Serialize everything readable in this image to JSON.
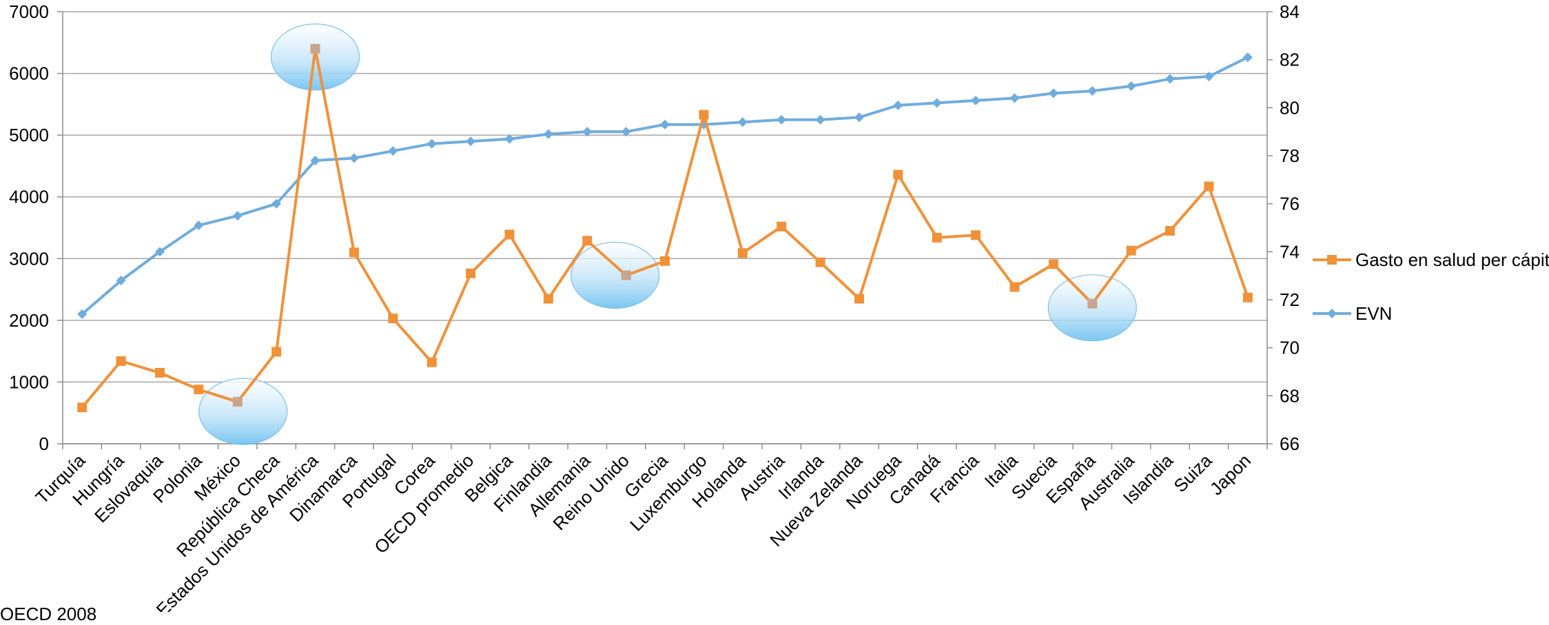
{
  "chart_data": {
    "type": "line",
    "categories": [
      "Turquía",
      "Hungría",
      "Eslovaquia",
      "Polonia",
      "México",
      "República Checa",
      "Estados Unidos de América",
      "Dinamarca",
      "Portugal",
      "Corea",
      "OECD promedio",
      "Belgica",
      "Finlandia",
      "Allemania",
      "Reino Unido",
      "Grecia",
      "Luxemburgo",
      "Holanda",
      "Austria",
      "Irlanda",
      "Nueva Zelanda",
      "Noruega",
      "Canadá",
      "Francia",
      "Italia",
      "Suecia",
      "España",
      "Australia",
      "Islandia",
      "Suiza",
      "Japon"
    ],
    "series": [
      {
        "name": "Gasto en salud per cápita",
        "axis": "left",
        "color": "#F0913A",
        "marker": "square",
        "values": [
          590,
          1340,
          1150,
          880,
          680,
          1490,
          6400,
          3100,
          2030,
          1320,
          2760,
          3390,
          2350,
          3290,
          2730,
          2960,
          5330,
          3090,
          3520,
          2940,
          2350,
          4360,
          3340,
          3380,
          2540,
          2910,
          2270,
          3130,
          3450,
          4170,
          2370
        ]
      },
      {
        "name": "EVN",
        "axis": "right",
        "color": "#6FACDE",
        "marker": "diamond",
        "values": [
          71.4,
          72.8,
          74.0,
          75.1,
          75.5,
          76.0,
          77.8,
          77.9,
          78.2,
          78.5,
          78.6,
          78.7,
          78.9,
          79.0,
          79.0,
          79.3,
          79.3,
          79.4,
          79.5,
          79.5,
          79.6,
          80.1,
          80.2,
          80.3,
          80.4,
          80.6,
          80.7,
          80.9,
          81.2,
          81.3,
          82.1
        ]
      }
    ],
    "y_left": {
      "min": 0,
      "max": 7000,
      "ticks": [
        "0",
        "1000",
        "2000",
        "3000",
        "4000",
        "5000",
        "6000",
        "7000"
      ]
    },
    "y_right": {
      "min": 66,
      "max": 84,
      "ticks": [
        "66",
        "68",
        "70",
        "72",
        "74",
        "76",
        "78",
        "80",
        "82",
        "84"
      ]
    },
    "grid": true,
    "legend_placement": "right",
    "highlights": [
      "México",
      "Estados Unidos de América",
      "Reino Unido",
      "España"
    ],
    "colors": {
      "highlight_marker": "#C9A58C"
    }
  },
  "source": "OECD 2008"
}
